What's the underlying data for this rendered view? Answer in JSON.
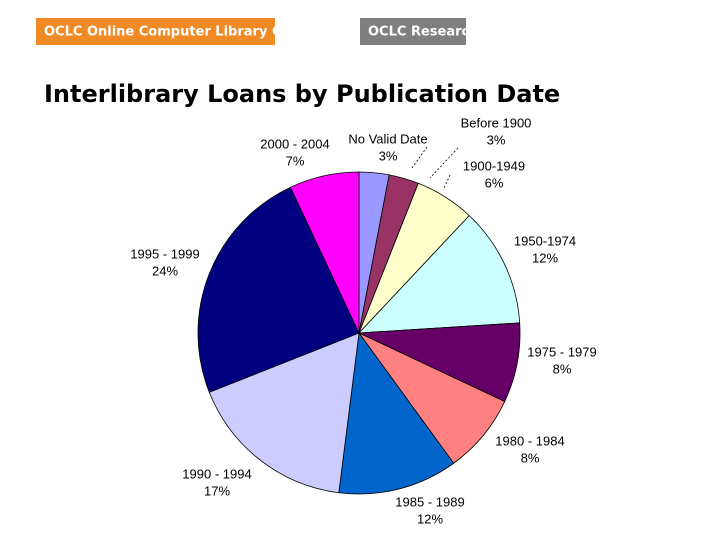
{
  "header": {
    "org": "OCLC Online Computer Library Center",
    "research": "OCLC Research"
  },
  "chart_data": {
    "type": "pie",
    "title": "Interlibrary Loans by Publication Date",
    "categories": [
      "No Valid Date",
      "Before 1900",
      "1900-1949",
      "1950-1974",
      "1975 - 1979",
      "1980 - 1984",
      "1985 - 1989",
      "1990 - 1994",
      "1995 - 1999",
      "2000 - 2004"
    ],
    "values": [
      3,
      3,
      6,
      12,
      8,
      8,
      12,
      17,
      24,
      7
    ],
    "value_labels": [
      "3%",
      "3%",
      "6%",
      "12%",
      "8%",
      "8%",
      "12%",
      "17%",
      "24%",
      "7%"
    ],
    "colors": [
      "#9999ff",
      "#993366",
      "#ffffcc",
      "#ccffff",
      "#660066",
      "#ff8080",
      "#0066cc",
      "#ccccff",
      "#000080",
      "#ff00ff"
    ]
  }
}
